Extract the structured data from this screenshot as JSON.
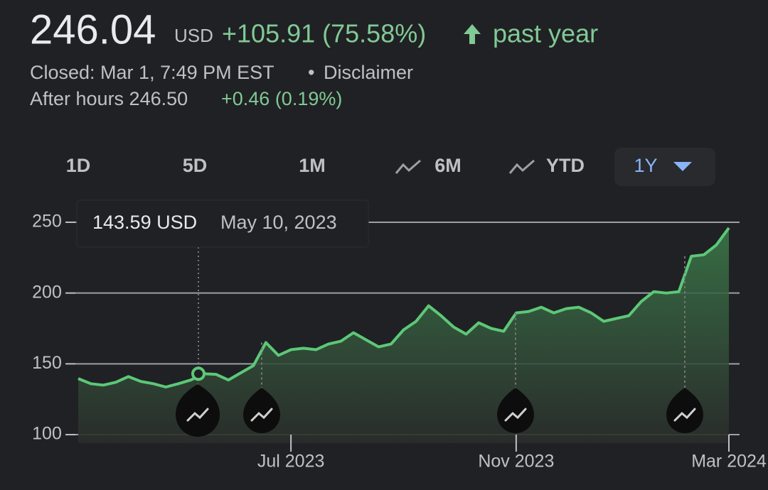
{
  "header": {
    "price": "246.04",
    "currency": "USD",
    "change": "+105.91 (75.58%)",
    "period": "past year",
    "closed": "Closed: Mar 1, 7:49 PM EST",
    "separator": "•",
    "disclaimer": "Disclaimer",
    "after_hours": "After hours 246.50",
    "after_change": "+0.46 (0.19%)"
  },
  "ranges": [
    "1D",
    "5D",
    "1M",
    "6M",
    "YTD",
    "1Y"
  ],
  "tooltip": {
    "value": "143.59 USD",
    "date": "May 10, 2023"
  },
  "chart_data": {
    "type": "line",
    "categories": [
      null,
      null,
      null,
      null,
      null,
      null,
      null,
      null,
      null,
      null,
      null,
      null,
      null,
      null,
      null,
      null,
      null,
      "Jul 2023",
      null,
      null,
      null,
      null,
      null,
      null,
      null,
      null,
      null,
      null,
      null,
      null,
      null,
      null,
      null,
      null,
      null,
      "Nov 2023",
      null,
      null,
      null,
      null,
      null,
      null,
      null,
      null,
      null,
      null,
      null,
      null,
      null,
      null,
      null,
      null,
      "Mar 2024"
    ],
    "values": [
      139.6,
      136,
      135,
      137,
      141,
      137.6,
      136,
      133.6,
      136,
      138.6,
      143,
      142.6,
      138.6,
      143.7,
      148.7,
      165,
      156,
      160,
      161,
      160,
      164,
      166,
      172,
      167,
      162,
      164,
      174,
      180,
      191,
      184,
      176,
      171,
      179,
      175,
      173,
      186,
      187,
      190,
      186,
      189,
      190,
      186,
      180,
      182,
      184,
      194,
      201,
      200,
      201,
      226,
      227,
      234,
      246
    ],
    "color": "#5cc877",
    "ylim": [
      94,
      256
    ],
    "yticks": [
      100,
      150,
      200,
      250
    ],
    "grid": true
  }
}
